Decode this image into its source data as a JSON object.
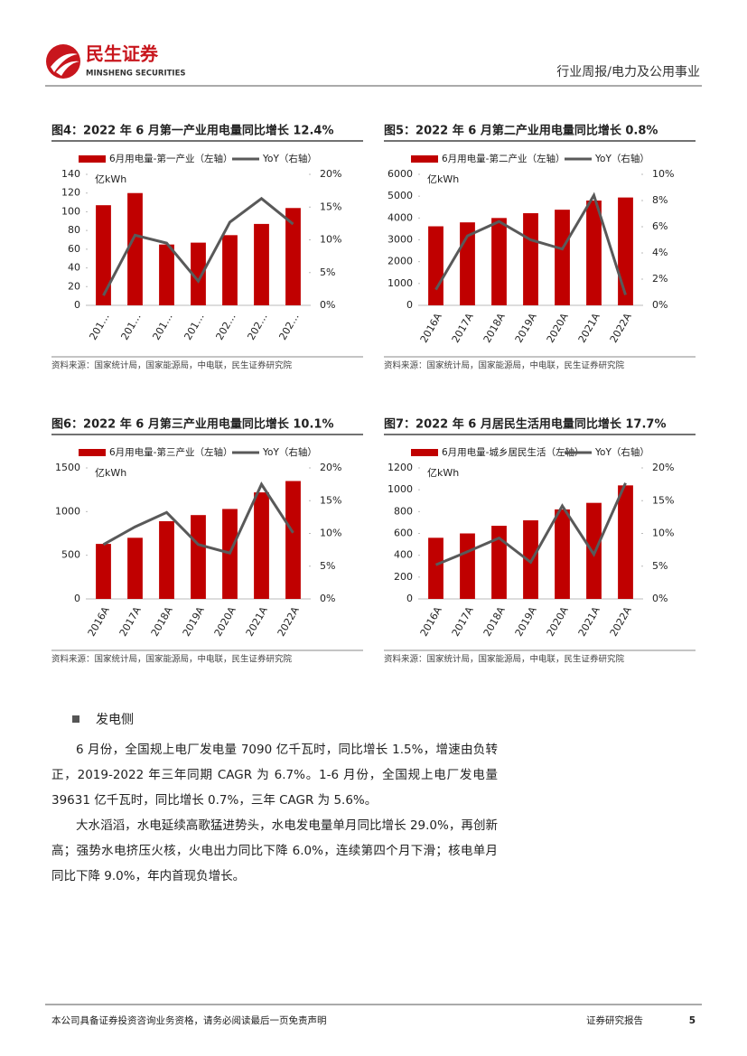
{
  "header": {
    "logo_cn": "民生证券",
    "logo_en": "MINSHENG SECURITIES",
    "section": "行业周报/电力及公用事业"
  },
  "chart_data": [
    {
      "type": "bar",
      "title": "图4：2022 年 6 月第一产业用电量同比增长 12.4%",
      "unit": "亿kWh",
      "categories": [
        "201…",
        "201…",
        "201…",
        "201…",
        "202…",
        "202…",
        "202…"
      ],
      "series": [
        {
          "name": "6月用电量-第一产业（左轴）",
          "color": "#c00000",
          "values": [
            107,
            120,
            65,
            67,
            75,
            87,
            104
          ]
        },
        {
          "name": "YoY（右轴）",
          "color": "#595959",
          "type": "line",
          "axis": "y2",
          "values": [
            1.5,
            10.7,
            9.5,
            3.7,
            12.7,
            16.3,
            12.4
          ]
        }
      ],
      "ylim": [
        0,
        140
      ],
      "yticks": [
        0,
        20,
        40,
        60,
        80,
        100,
        120,
        140
      ],
      "y2lim": [
        0,
        20
      ],
      "y2ticks": [
        {
          "value": 0,
          "label": "0%"
        },
        {
          "value": 5,
          "label": "5%"
        },
        {
          "value": 10,
          "label": "10%"
        },
        {
          "value": 15,
          "label": "15%"
        },
        {
          "value": 20,
          "label": "20%"
        }
      ],
      "source": "资料来源：国家统计局，国家能源局，中电联，民生证券研究院"
    },
    {
      "type": "bar",
      "title": "图5：2022 年 6 月第二产业用电量同比增长 0.8%",
      "unit": "亿kWh",
      "categories": [
        "2016A",
        "2017A",
        "2018A",
        "2019A",
        "2020A",
        "2021A",
        "2022A"
      ],
      "series": [
        {
          "name": "6月用电量-第二产业（左轴）",
          "color": "#c00000",
          "values": [
            3620,
            3800,
            4000,
            4220,
            4380,
            4800,
            4940
          ]
        },
        {
          "name": "YoY（右轴）",
          "color": "#595959",
          "type": "line",
          "axis": "y2",
          "values": [
            1.2,
            5.3,
            6.4,
            5.0,
            4.3,
            8.4,
            0.8
          ]
        }
      ],
      "ylim": [
        0,
        6000
      ],
      "yticks": [
        0,
        1000,
        2000,
        3000,
        4000,
        5000,
        6000
      ],
      "y2lim": [
        0,
        10
      ],
      "y2ticks": [
        {
          "value": 0,
          "label": "0%"
        },
        {
          "value": 2,
          "label": "2%"
        },
        {
          "value": 4,
          "label": "4%"
        },
        {
          "value": 6,
          "label": "6%"
        },
        {
          "value": 8,
          "label": "8%"
        },
        {
          "value": 10,
          "label": "10%"
        }
      ],
      "source": "资料来源：国家统计局，国家能源局，中电联，民生证券研究院"
    },
    {
      "type": "bar",
      "title": "图6：2022 年 6 月第三产业用电量同比增长 10.1%",
      "unit": "亿kWh",
      "categories": [
        "2016A",
        "2017A",
        "2018A",
        "2019A",
        "2020A",
        "2021A",
        "2022A"
      ],
      "series": [
        {
          "name": "6月用电量-第三产业（左轴）",
          "color": "#c00000",
          "values": [
            630,
            700,
            890,
            960,
            1030,
            1220,
            1350
          ]
        },
        {
          "name": "YoY（右轴）",
          "color": "#595959",
          "type": "line",
          "axis": "y2",
          "values": [
            8.3,
            11.0,
            13.2,
            8.3,
            7.0,
            17.5,
            10.1
          ]
        }
      ],
      "ylim": [
        0,
        1500
      ],
      "yticks": [
        0,
        500,
        1000,
        1500
      ],
      "y2lim": [
        0,
        20
      ],
      "y2ticks": [
        {
          "value": 0,
          "label": "0%"
        },
        {
          "value": 5,
          "label": "5%"
        },
        {
          "value": 10,
          "label": "10%"
        },
        {
          "value": 15,
          "label": "15%"
        },
        {
          "value": 20,
          "label": "20%"
        }
      ],
      "source": "资料来源：国家统计局，国家能源局，中电联，民生证券研究院"
    },
    {
      "type": "bar",
      "title": "图7：2022 年 6 月居民生活用电量同比增长 17.7%",
      "unit": "亿kWh",
      "categories": [
        "2016A",
        "2017A",
        "2018A",
        "2019A",
        "2020A",
        "2021A",
        "2022A"
      ],
      "series": [
        {
          "name": "6月用电量-城乡居民生活（左轴）",
          "color": "#c00000",
          "values": [
            560,
            600,
            670,
            720,
            820,
            880,
            1040
          ]
        },
        {
          "name": "YoY（右轴）",
          "color": "#595959",
          "type": "line",
          "axis": "y2",
          "values": [
            5.2,
            7.2,
            9.3,
            5.6,
            14.2,
            6.8,
            17.7
          ]
        }
      ],
      "ylim": [
        0,
        1200
      ],
      "yticks": [
        0,
        200,
        400,
        600,
        800,
        1000,
        1200
      ],
      "y2lim": [
        0,
        20
      ],
      "y2ticks": [
        {
          "value": 0,
          "label": "0%"
        },
        {
          "value": 5,
          "label": "5%"
        },
        {
          "value": 10,
          "label": "10%"
        },
        {
          "value": 15,
          "label": "15%"
        },
        {
          "value": 20,
          "label": "20%"
        }
      ],
      "source": "资料来源：国家统计局，国家能源局，中电联，民生证券研究院"
    }
  ],
  "body": {
    "bullet": "发电侧",
    "paragraphs": [
      "6 月份，全国规上电厂发电量 7090 亿千瓦时，同比增长 1.5%，增速由负转正，2019-2022 年三年同期 CAGR 为 6.7%。1-6 月份，全国规上电厂发电量 39631 亿千瓦时，同比增长 0.7%，三年 CAGR 为 5.6%。",
      "大水滔滔，水电延续高歌猛进势头，水电发电量单月同比增长 29.0%，再创新高；强势水电挤压火核，火电出力同比下降 6.0%，连续第四个月下滑；核电单月同比下降 9.0%，年内首现负增长。"
    ]
  },
  "footer": {
    "disclaimer": "本公司具备证券投资咨询业务资格，请务必阅读最后一页免责声明",
    "label": "证券研究报告",
    "page": "5"
  }
}
